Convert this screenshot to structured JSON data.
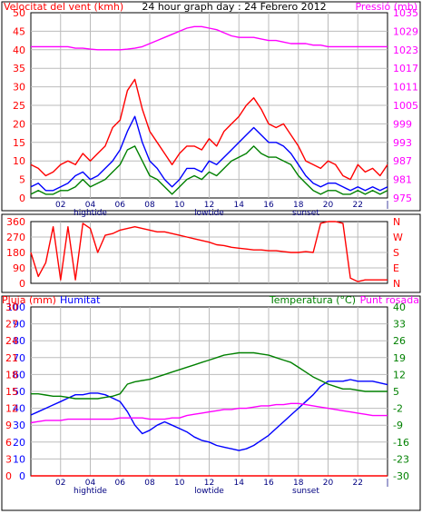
{
  "chart_data": [
    {
      "type": "line",
      "panel": "wind-pressure",
      "title": "24 hour graph day : 24 Febrero 2012",
      "ylabel_left": "Velocitat del vent (kmh)",
      "ylabel_right": "Pressió (mb)",
      "ylim_left": [
        0,
        50
      ],
      "yticks_left": [
        "0",
        "5",
        "10",
        "15",
        "20",
        "25",
        "30",
        "35",
        "40",
        "45",
        "50"
      ],
      "ylim_right": [
        975,
        1035
      ],
      "yticks_right": [
        "975",
        "981",
        "987",
        "993",
        "999",
        "1005",
        "1011",
        "1017",
        "1023",
        "1029",
        "1035"
      ],
      "x_hours": [
        0,
        0.5,
        1,
        1.5,
        2,
        2.5,
        3,
        3.5,
        4,
        4.5,
        5,
        5.5,
        6,
        6.5,
        7,
        7.5,
        8,
        8.5,
        9,
        9.5,
        10,
        10.5,
        11,
        11.5,
        12,
        12.5,
        13,
        13.5,
        14,
        14.5,
        15,
        15.5,
        16,
        16.5,
        17,
        17.5,
        18,
        18.5,
        19,
        19.5,
        20,
        20.5,
        21,
        21.5,
        22,
        22.5,
        23,
        23.5,
        24
      ],
      "xticks": [
        "02",
        "04",
        "06",
        "08",
        "10",
        "12",
        "14",
        "16",
        "18",
        "20",
        "22"
      ],
      "tide_labels": {
        "hightide": 4,
        "lowtide": 12,
        "sunset": 18.5
      },
      "series": [
        {
          "name": "gust",
          "color": "#ff0000",
          "values": [
            9,
            8,
            6,
            7,
            9,
            10,
            9,
            12,
            10,
            12,
            14,
            19,
            21,
            29,
            32,
            24,
            18,
            15,
            12,
            9,
            12,
            14,
            14,
            13,
            16,
            14,
            18,
            20,
            22,
            25,
            27,
            24,
            20,
            19,
            20,
            17,
            14,
            10,
            9,
            8,
            10,
            9,
            6,
            5,
            9,
            7,
            8,
            6,
            9
          ]
        },
        {
          "name": "average",
          "color": "#0000ff",
          "values": [
            3,
            4,
            2,
            2,
            3,
            4,
            6,
            7,
            5,
            6,
            8,
            10,
            13,
            18,
            22,
            15,
            10,
            8,
            5,
            3,
            5,
            8,
            8,
            7,
            10,
            9,
            11,
            13,
            15,
            17,
            19,
            17,
            15,
            15,
            14,
            12,
            9,
            6,
            4,
            3,
            4,
            4,
            3,
            2,
            3,
            2,
            3,
            2,
            3
          ]
        },
        {
          "name": "min",
          "color": "#008000",
          "values": [
            1,
            2,
            1,
            1,
            2,
            2,
            3,
            5,
            3,
            4,
            5,
            7,
            9,
            13,
            14,
            10,
            6,
            5,
            3,
            1,
            3,
            5,
            6,
            5,
            7,
            6,
            8,
            10,
            11,
            12,
            14,
            12,
            11,
            11,
            10,
            9,
            6,
            4,
            2,
            1,
            2,
            2,
            1,
            1,
            2,
            1,
            2,
            1,
            2
          ]
        },
        {
          "name": "pressure",
          "color": "#ff00ff",
          "axis": "right",
          "values": [
            1024,
            1024,
            1024,
            1024,
            1024,
            1024,
            1023.5,
            1023.5,
            1023.2,
            1023,
            1023,
            1023,
            1023,
            1023.2,
            1023.5,
            1024,
            1025,
            1026,
            1027,
            1028,
            1029,
            1030,
            1030.5,
            1030.5,
            1030,
            1029.5,
            1028.5,
            1027.5,
            1027,
            1027,
            1027,
            1026.5,
            1026,
            1026,
            1025.5,
            1025,
            1025,
            1025,
            1024.5,
            1024.5,
            1024,
            1024,
            1024,
            1024,
            1024,
            1024,
            1024,
            1024,
            1024
          ]
        }
      ]
    },
    {
      "type": "line",
      "panel": "wind-direction",
      "ylabel_left": "",
      "ylim": [
        0,
        360
      ],
      "yticks_left": [
        "0",
        "90",
        "180",
        "270",
        "360"
      ],
      "yticks_right": [
        "N",
        "E",
        "S",
        "W",
        "N"
      ],
      "x_hours": [
        0,
        0.5,
        1,
        1.5,
        2,
        2.5,
        3,
        3.5,
        4,
        4.5,
        5,
        5.5,
        6,
        6.5,
        7,
        7.5,
        8,
        8.5,
        9,
        9.5,
        10,
        10.5,
        11,
        11.5,
        12,
        12.5,
        13,
        13.5,
        14,
        14.5,
        15,
        15.5,
        16,
        16.5,
        17,
        17.5,
        18,
        18.5,
        19,
        19.5,
        20,
        20.5,
        21,
        21.5,
        22,
        22.5,
        23,
        23.5,
        24
      ],
      "series": [
        {
          "name": "direction",
          "color": "#ff0000",
          "values": [
            180,
            40,
            120,
            330,
            20,
            330,
            20,
            350,
            320,
            180,
            280,
            290,
            310,
            320,
            330,
            320,
            310,
            300,
            300,
            290,
            280,
            270,
            260,
            250,
            240,
            225,
            220,
            210,
            205,
            200,
            195,
            195,
            190,
            190,
            185,
            180,
            180,
            185,
            180,
            350,
            360,
            360,
            350,
            30,
            10,
            20,
            20,
            20,
            20
          ]
        }
      ]
    },
    {
      "type": "line",
      "panel": "rain-humidity-temperature",
      "ylabel_left": "Pluja (mm)",
      "ylabel_left2": "Humitat",
      "ylabel_right": "Temperatura (°C)",
      "ylabel_right2": "Punt rosada",
      "ylim_rain": [
        0,
        30
      ],
      "yticks_rain": [
        "0",
        "3",
        "6",
        "9",
        "12",
        "15",
        "18",
        "21",
        "24",
        "27",
        "30"
      ],
      "ylim_humidity": [
        0,
        100
      ],
      "yticks_humidity": [
        "0",
        "10",
        "20",
        "30",
        "40",
        "50",
        "60",
        "70",
        "80",
        "90",
        "100"
      ],
      "ylim_temperature": [
        -30,
        40
      ],
      "yticks_temperature": [
        "-30",
        "-23",
        "-16",
        "-9",
        "-2",
        "5",
        "12",
        "19",
        "26",
        "33",
        "40"
      ],
      "x_hours": [
        0,
        0.5,
        1,
        1.5,
        2,
        2.5,
        3,
        3.5,
        4,
        4.5,
        5,
        5.5,
        6,
        6.5,
        7,
        7.5,
        8,
        8.5,
        9,
        9.5,
        10,
        10.5,
        11,
        11.5,
        12,
        12.5,
        13,
        13.5,
        14,
        14.5,
        15,
        15.5,
        16,
        16.5,
        17,
        17.5,
        18,
        18.5,
        19,
        19.5,
        20,
        20.5,
        21,
        21.5,
        22,
        22.5,
        23,
        23.5,
        24
      ],
      "xticks": [
        "02",
        "04",
        "06",
        "08",
        "10",
        "12",
        "14",
        "16",
        "18",
        "20",
        "22"
      ],
      "tide_labels": {
        "hightide": 4,
        "lowtide": 12,
        "sunset": 18.5
      },
      "series": [
        {
          "name": "rain",
          "color": "#ff0000",
          "axis": "rain",
          "values": [
            0,
            0,
            0,
            0,
            0,
            0,
            0,
            0,
            0,
            0,
            0,
            0,
            0,
            0,
            0,
            0,
            0,
            0,
            0,
            0,
            0,
            0,
            0,
            0,
            0,
            0,
            0,
            0,
            0,
            0,
            0,
            0,
            0,
            0,
            0,
            0,
            0,
            0,
            0,
            0,
            0,
            0,
            0,
            0,
            0,
            0,
            0,
            0,
            0
          ]
        },
        {
          "name": "humidity",
          "color": "#0000ff",
          "axis": "humidity",
          "values": [
            36,
            38,
            40,
            42,
            44,
            46,
            48,
            48,
            49,
            49,
            48,
            46,
            44,
            38,
            30,
            25,
            27,
            30,
            32,
            30,
            28,
            26,
            23,
            21,
            20,
            18,
            17,
            16,
            15,
            16,
            18,
            21,
            24,
            28,
            32,
            36,
            40,
            44,
            48,
            53,
            56,
            56,
            56,
            57,
            56,
            56,
            56,
            55,
            54
          ]
        },
        {
          "name": "temperature",
          "color": "#008000",
          "axis": "temperature",
          "values": [
            4,
            4,
            3.5,
            3,
            3,
            2.5,
            2,
            2,
            2,
            2,
            2.5,
            3,
            4,
            8,
            9,
            9.5,
            10,
            11,
            12,
            13,
            14,
            15,
            16,
            17,
            18,
            19,
            20,
            20.5,
            21,
            21,
            21,
            20.5,
            20,
            19,
            18,
            17,
            15,
            13,
            11,
            9.5,
            8,
            7,
            6,
            6,
            5.5,
            5,
            5,
            5,
            5
          ]
        },
        {
          "name": "dewpoint",
          "color": "#ff00ff",
          "axis": "temperature",
          "values": [
            -8,
            -7.5,
            -7,
            -7,
            -7,
            -6.5,
            -6.5,
            -6.5,
            -6.5,
            -6.5,
            -6.5,
            -6.5,
            -6,
            -6,
            -6,
            -6,
            -6.5,
            -6.5,
            -6.5,
            -6,
            -6,
            -5,
            -4.5,
            -4,
            -3.5,
            -3,
            -2.5,
            -2.5,
            -2,
            -2,
            -1.5,
            -1,
            -1,
            -0.5,
            -0.5,
            0,
            0,
            -0.5,
            -1,
            -1.5,
            -2,
            -2.5,
            -3,
            -3.5,
            -4,
            -4.5,
            -5,
            -5,
            -5
          ]
        }
      ]
    }
  ]
}
